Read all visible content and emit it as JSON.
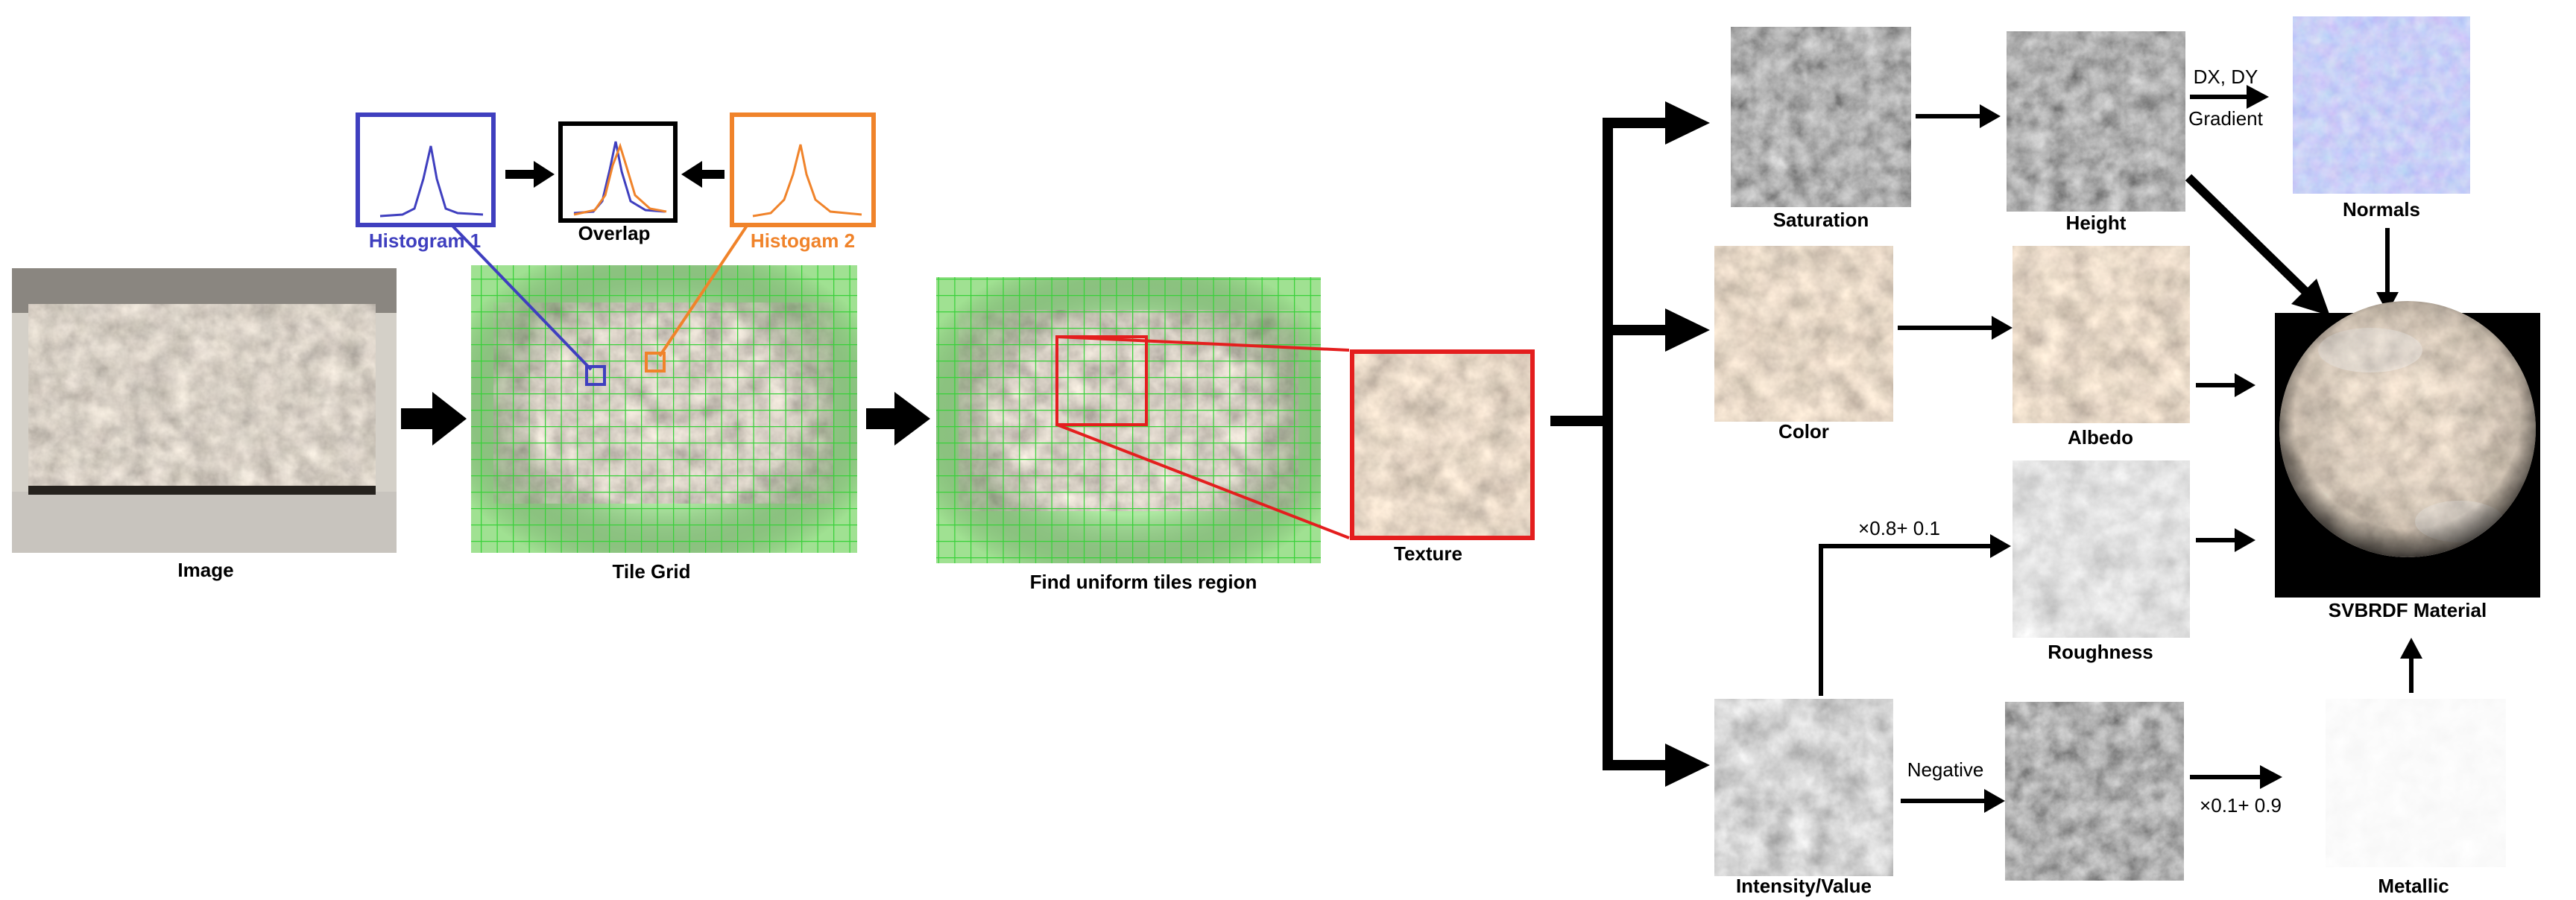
{
  "labels": {
    "image": "Image",
    "tile_grid": "Tile Grid",
    "overlap": "Overlap",
    "histogram1": "Histogram 1",
    "histogram2": "Histogam 2",
    "find_region": "Find uniform tiles region",
    "texture": "Texture",
    "saturation": "Saturation",
    "height": "Height",
    "normals": "Normals",
    "color": "Color",
    "albedo": "Albedo",
    "roughness": "Roughness",
    "intensity": "Intensity/Value",
    "metallic": "Metallic",
    "material": "SVBRDF Material"
  },
  "annotations": {
    "dxdy": "DX, DY",
    "gradient": "Gradient",
    "rough_formula": "×0.8+ 0.1",
    "negative": "Negative",
    "metal_formula": "×0.1+ 0.9"
  },
  "colors": {
    "histogram1": "#3f3fbf",
    "histogram2": "#f0832a",
    "grid": "#39d13a",
    "region": "#e41e1e",
    "arrow": "#000000"
  }
}
